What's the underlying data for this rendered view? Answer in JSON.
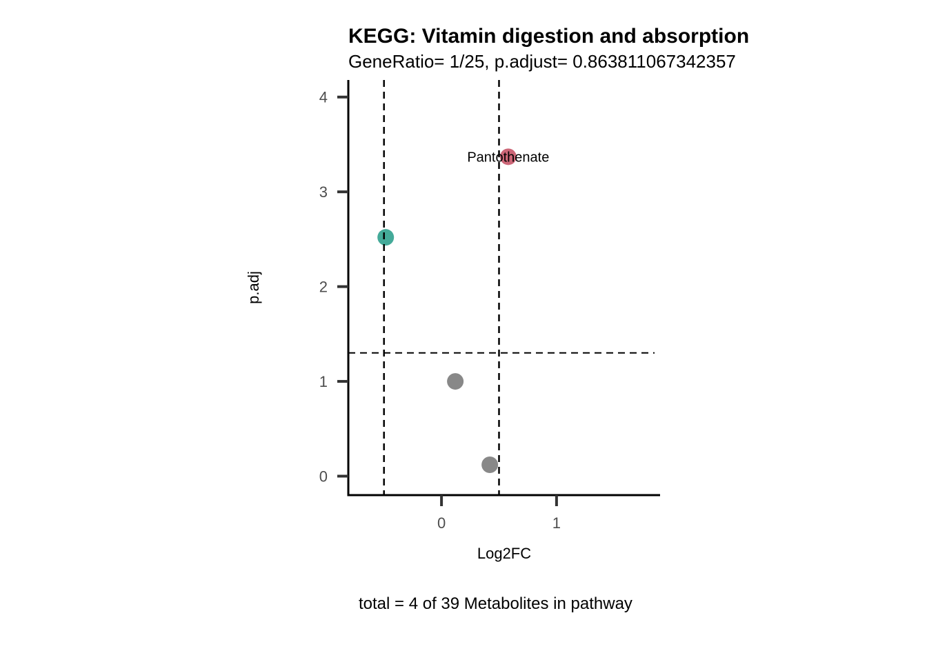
{
  "chart_data": {
    "type": "scatter",
    "title": "KEGG: Vitamin digestion and absorption",
    "subtitle": "GeneRatio= 1/25, p.adjust= 0.863811067342357",
    "xlabel": "Log2FC",
    "ylabel": "p.adj",
    "caption": "total = 4 of 39 Metabolites in pathway",
    "xlim": [
      -0.81,
      1.9
    ],
    "ylim": [
      -0.2,
      4.18
    ],
    "xticks": [
      0,
      1
    ],
    "yticks": [
      0,
      1,
      2,
      3,
      4
    ],
    "grid": false,
    "vlines": [
      -0.5,
      0.5
    ],
    "hlines": [
      1.301
    ],
    "points": [
      {
        "x": -0.485,
        "y": 2.52,
        "color": "#44AA99",
        "label": ""
      },
      {
        "x": 0.58,
        "y": 3.37,
        "color": "#CC6677",
        "label": "Pantothenate"
      },
      {
        "x": 0.12,
        "y": 1.0,
        "color": "#888888",
        "label": ""
      },
      {
        "x": 0.42,
        "y": 0.12,
        "color": "#888888",
        "label": ""
      }
    ]
  }
}
